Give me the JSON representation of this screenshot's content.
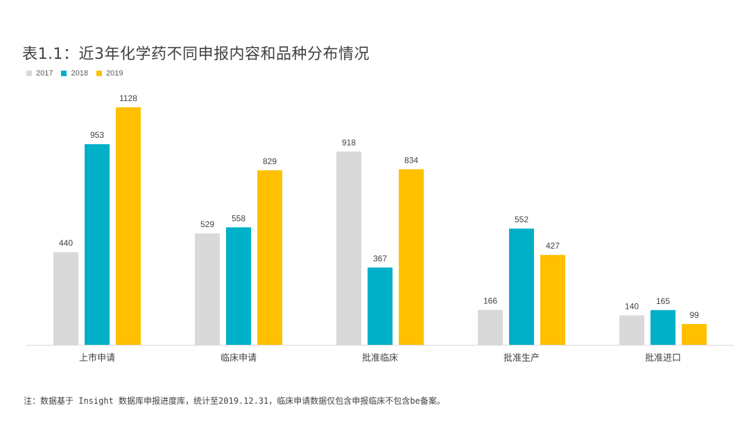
{
  "title": "表1.1：近3年化学药不同申报内容和品种分布情况",
  "note": "注：数据基于 Insight 数据库申报进度库，统计至2019.12.31，临床申请数据仅包含申报临床不包含be备案。",
  "colors": {
    "2017": "#d9d9d9",
    "2018": "#00b0c8",
    "2019": "#ffc000",
    "axis": "#d9d9d9",
    "text": "#404040"
  },
  "chart_data": {
    "type": "bar",
    "title": "表1.1：近3年化学药不同申报内容和品种分布情况",
    "categories": [
      "上市申请",
      "临床申请",
      "批准临床",
      "批准生产",
      "批准进口"
    ],
    "series": [
      {
        "name": "2017",
        "values": [
          440,
          529,
          918,
          166,
          140
        ]
      },
      {
        "name": "2018",
        "values": [
          953,
          558,
          367,
          552,
          165
        ]
      },
      {
        "name": "2019",
        "values": [
          1128,
          829,
          834,
          427,
          99
        ]
      }
    ],
    "xlabel": "",
    "ylabel": "",
    "ylim": [
      0,
      1128
    ],
    "grid": false,
    "legend": "top-left"
  }
}
